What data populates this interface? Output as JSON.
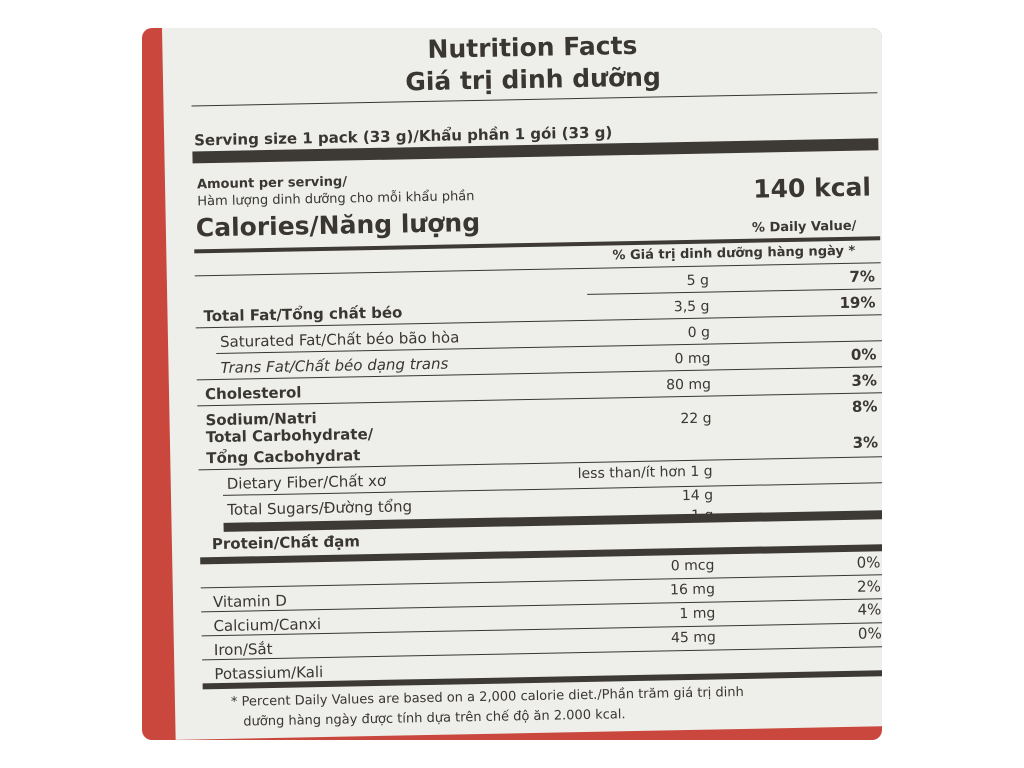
{
  "label": {
    "title_en": "Nutrition Facts",
    "title_vi": "Giá trị dinh dưỡng",
    "serving": "Serving size 1 pack (33 g)/Khẩu phần 1 gói (33 g)",
    "amount_per_serving_en": "Amount per serving/",
    "amount_per_serving_vi": "Hàm lượng dinh dưỡng cho mỗi khẩu phần",
    "calories_label": "Calories/Năng lượng",
    "calories_value": "140 kcal",
    "dv_header_en": "% Daily Value/",
    "dv_header_vi": "% Giá trị dinh dưỡng hàng ngày *",
    "nutrients": [
      {
        "name": "",
        "amount": "5 g",
        "dv": "7%"
      },
      {
        "name": "Total Fat/Tổng chất béo",
        "amount": "3,5 g",
        "dv": "19%"
      },
      {
        "name": "Saturated Fat/Chất béo bão hòa",
        "amount": "0 g",
        "dv": ""
      },
      {
        "name": "Trans Fat/Chất béo dạng trans",
        "amount": "0 mg",
        "dv": "0%"
      },
      {
        "name": "Cholesterol",
        "amount": "80 mg",
        "dv": "3%"
      },
      {
        "name": "Sodium/Natri",
        "amount": "",
        "dv": "8%"
      },
      {
        "name": "Total Carbohydrate/",
        "amount": "22 g",
        "dv": ""
      },
      {
        "name": "Tổng Cacbohydrat",
        "amount": "",
        "dv": "3%"
      },
      {
        "name": "Dietary Fiber/Chất xơ",
        "amount": "less than/ít hơn 1 g",
        "dv": ""
      },
      {
        "name": "Total Sugars/Đường tổng",
        "amount": "14 g",
        "dv": ""
      },
      {
        "name": "",
        "amount": "1 g",
        "dv": ""
      },
      {
        "name": "Protein/Chất đạm",
        "amount": "",
        "dv": ""
      },
      {
        "name": "",
        "amount": "0 mcg",
        "dv": "0%"
      },
      {
        "name": "Vitamin D",
        "amount": "16 mg",
        "dv": "2%"
      },
      {
        "name": "Calcium/Canxi",
        "amount": "1 mg",
        "dv": "4%"
      },
      {
        "name": "Iron/Sắt",
        "amount": "45 mg",
        "dv": "0%"
      },
      {
        "name": "Potassium/Kali",
        "amount": "",
        "dv": ""
      }
    ],
    "footnote_1": "* Percent Daily Values are based on a 2,000 calorie diet./Phần trăm giá trị dinh",
    "footnote_2": "dưỡng hàng ngày được tính dựa trên chế độ ăn 2.000 kcal."
  }
}
